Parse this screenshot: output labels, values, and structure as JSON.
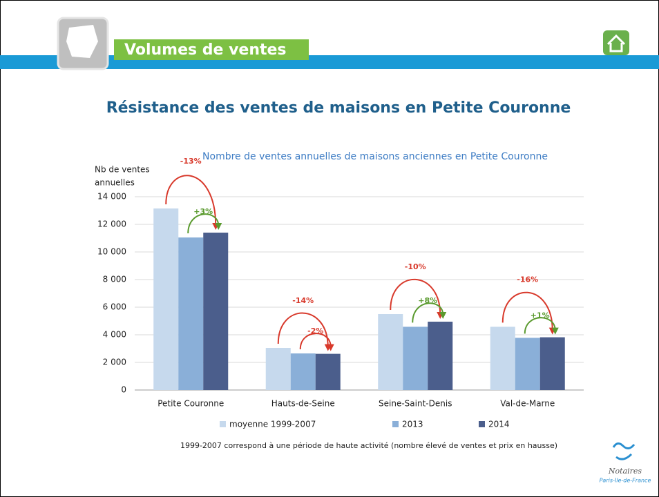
{
  "header": {
    "section": "Volumes de ventes"
  },
  "chart_data": {
    "type": "bar",
    "slide_title": "Résistance des ventes de maisons en Petite Couronne",
    "title": "Nombre de ventes annuelles de maisons anciennes en Petite Couronne",
    "y_label": [
      "Nb de ventes",
      "annuelles"
    ],
    "categories": [
      "Petite Couronne",
      "Hauts-de-Seine",
      "Seine-Saint-Denis",
      "Val-de-Marne"
    ],
    "series": [
      {
        "name": "moyenne 1999-2007",
        "color": "#c6d9ed",
        "values": [
          13150,
          3050,
          5500,
          4580
        ]
      },
      {
        "name": "2013",
        "color": "#8aafd8",
        "values": [
          11050,
          2650,
          4580,
          3780
        ]
      },
      {
        "name": "2014",
        "color": "#4b5e8c",
        "values": [
          11400,
          2620,
          4950,
          3820
        ]
      }
    ],
    "ylim": [
      0,
      14000
    ],
    "yticks": [
      0,
      {
        "value": 2000,
        "label": "2 000"
      },
      {
        "value": 4000,
        "label": "4 000"
      },
      {
        "value": 6000,
        "label": "6 000"
      },
      {
        "value": 8000,
        "label": "8 000"
      },
      {
        "value": 10000,
        "label": "10 000"
      },
      {
        "value": 12000,
        "label": "12 000"
      },
      {
        "value": 14000,
        "label": "14 000"
      }
    ],
    "grid": true,
    "annotations": [
      {
        "long": {
          "text": "-13%",
          "color": "#d8392b"
        },
        "short": {
          "text": "+3%",
          "color": "#5a9a2e"
        }
      },
      {
        "long": {
          "text": "-14%",
          "color": "#d8392b"
        },
        "short": {
          "text": "-2%",
          "color": "#d8392b"
        }
      },
      {
        "long": {
          "text": "-10%",
          "color": "#d8392b"
        },
        "short": {
          "text": "+8%",
          "color": "#5a9a2e"
        }
      },
      {
        "long": {
          "text": "-16%",
          "color": "#d8392b"
        },
        "short": {
          "text": "+1%",
          "color": "#5a9a2e"
        }
      }
    ],
    "footnote": "1999-2007 correspond à une période de haute activité (nombre élevé de ventes et prix en hausse)"
  },
  "logo": {
    "name": "Notaires",
    "region": "Paris-Ile-de-France"
  }
}
